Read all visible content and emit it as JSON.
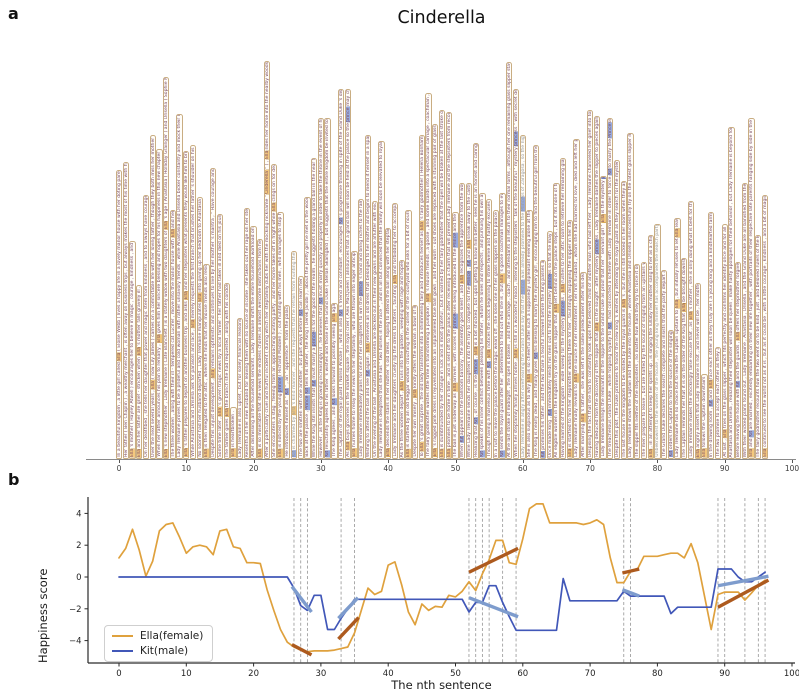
{
  "figure": {
    "panel_a_label": "a",
    "panel_b_label": "b"
  },
  "panel_a": {
    "title": "Cinderella",
    "x_ticks": [
      0,
      10,
      20,
      30,
      40,
      50,
      60,
      70,
      80,
      90,
      100
    ],
    "gray_indices": [
      26,
      60,
      80
    ],
    "highlight": {
      "ella_pattern": "Cinderella|Ella",
      "kit_pattern": "Kit|Prince|prince",
      "ella_color": "#f4c87e",
      "kit_color": "#97abdf"
    },
    "sentences": [
      "In a beautiful kingdom , a little girl called Ella ( Eloise Webb ) lives a happy life in a lovely manor house with her doting parents .",
      "Her father ( Ben Chaplin ) , a wealthy merchant , is often away on business trips , but always makes the most of his time with his family .",
      "Ella 's mother ( Hayley Atwell ) encourages her to believe in magic , courage , kindness , and hope .",
      "Ella and her father are grief - stricken when Ella 's mother falls gravely ill .",
      "On her deathbed , she tells her daughter that power and magic stem from kindness , and to always have courage and be kind .",
      "Over the next several years , Ella ( now Lily James ) carries on a comfortable life with her loving father , though they both miss her mother terribly .",
      "When her father announces his plan to remarry , Ella gives him her sincere blessing and hopes for his happiness in this new chapter of his life .",
      "Ella 's new stepmother , Lady Tremaine ( Cate Blanchett ) is a stately widow with two daughters of Ella 's age ( Anastasia ( Holliday Grainger ) and Drisella ( Sophie McShera ) ) .",
      "The three women , along with their ill - tempered cat Lucifer , move into the manor house with Ella and her father .",
      "Lady Tremaine proves to be a prideful and cold woman with rather unsavory friends , while Anastasia and Drisella bicker constantly and mock their new stepsister .",
      "Ella 's father prepares to depart on another business trip , and asks Ella and her stepsisters what presents they would like him to bring them .",
      "While Anastasia and Drisella ask for parasols and lace , Ella merely requests the first branch that brushes her father 's shoulder on his journey .",
      "No sooner had her husband departed , Lady Tremaine manipulates Ella into giving up her bedroom to Anastasia and Drisella .",
      "Ella is then relegated to the attic , where she finds that her mouse friends also reside .",
      "Despite this unjust development , Ella remains optimistic and continues to live by her mother 's mantra , \" Have courage and be kind . \"",
      "Some time later , Ella 's given tragic news by a local farmer : her father had taken ill and died on his journey .",
      "The farmer gives Ella the branch she had requested , along with his condolences .",
      "Ella is heartbroken .",
      "Lady Tremaine is also upset , but for solely financial reasons .",
      "Resentful of her new husband for leaving them with no source of income , she takes out her rage on her stepdaughter .",
      "After dismissing all the household servants , Lady Tremaine shifts the entire household workload onto Ella .",
      "Ella is so miserable that she views the endless chores as almost welcome distractions from her grief .",
      "After a particularly cruel and hurtful incident ( during which her stepfamily dubs her with the mocking nickname \" Cinderella \" ) , Ella rides her horse into the nearby woods to calm herself .",
      "She encounters a stag , fleeing from an approaching hunting party , and her horse takes off in fright while Ella clings on for dear life .",
      "Ella is noticed by the young prince ( Richard Madden ) , out hunting with his men , who manages to stop her horse .",
      "He introduces himself as \" Kit \" , an \" apprentice \" from the palace .",
      "Kit is charmed by Ella 's kind manner , and she requests that he refrain from hunting the stag .",
      "The two are smitten with one another , but part ways before Kit can learn her name .",
      "Back at the palace , Prince Kit tells his father , the King ( Derek Jacobi ) , about the pretty girl he met in the woods .",
      "While the King still insists that Kit must marry a princess for the good of the realm , he suggests holding a grand ball in the near future .",
      "However , as the King is growing increasingly ill , he believes that Kit must marry quickly and properly in order to take the throne in the event of his death .",
      "Kit reluctantly agrees to his father 's wishes and those of the Grand Duke ( Stellan Skarsgård ) , but suggests that the entire kingdom be invited to the ball .",
      "The King agrees , and Kit looks forward to possibly seeing Ella again .",
      "The Captain of the royal guard ( Nonso Anozie ) , who is also Kit 's friend and confidant , encourages Kit 's progressive thinking in spite of the Grand Duke 's disapproval .",
      "As Ella buys groceries in the market square , the royal crier ( Alex MacQueen ) announces that a grand ball will soon be held at the palace so the prince may choose a bride .",
      "Ella hurries home to relay the news to her stepfamily , who are thrown into eager anticipation .",
      "Lady Tremaine immediately plans for one of her daughters to win the prince 's hand and bring riches to the family again .",
      "Wishing to attend the ball and see Kit again , Ella retrieves an old dress that belonged to her mother and begins to mend it herself in a spare moment .",
      "On the evening of the ball , Anastasia and Drisella are decked out in their new gowns and are aflutter with excitement .",
      "Lady Tremaine is delighted that she has \" two horses in the race \" , and is all but convinced that the family will soon be elevated to royal status .",
      "Ella descends the stairs in her mother 's old dress , hoping to attend the ball along with her stepfamily .",
      "Lady Tremaine and her daughters cruelly rip the dress to tatters , taunting Ella and forbidding her to accompany them .",
      "As the three women depart , Ella runs into the garden , weeping with rage and hopelessness .",
      "Ella is startled by an old beggar woman crouching in the corner of the courtyard who asks for a bit of nourishment .",
      "Despite her own misery , Ella kindly offers the woman a bowl of milk .",
      "To Ella 's great surprise , the old lady transforms into a shimmering fairy and introduces herself as Ella 's fairy godmother ( Helena Bonham Carter ) .",
      "The fairy godmother wastes little time in transforming a pumpkin , Ella 's mouse friends , a goose , and some lizards into a spectacular carriage , coachman , and footmen .",
      "Ella 's ragged pink dress is rejuvenated into an unparalleled blue ball gown , and her worn - out shoes are replaced with a stunning pair of glass slippers .",
      "Ella is dumbfounded by her change in luck and is most grateful , but is warned by her fairy godmother that the spell will be broken at the last stroke of midnight .",
      "Ella promises to be home in time , and is sent off to the palace after receiving a charm that will prevent Lady Tremaine and the stepsisters from recognizing her .",
      "The ball is just underway as Ella arrives , with scores of princesses being introduced to the Prince and the King .",
      "When Kit appears on the ballroom balcony , the assembly goes silent , and Ella recognizes the apprentice from the woods at once .",
      "While Lady Tremaine sends her daughters into the fray to compete for the Prince , Kit and Ella sneak away to the castle grounds .",
      "Realizing that Kit , of course , is the Prince , Ella is a bit shocked , but upon getting to know him better , sees he is an honest and caring man .",
      "Kit speaks of his inner conflict between pleasing his father , whom he loves and respects , and pursuing his own ambitions .",
      "Though having a marvelous time with Kit , Ella notices the clock beginning to strike twelve and hastily excuses herself .",
      "In a rush to leave the palace before the magic wears off , she loses one of her glass slippers on the palace steps .",
      "Kit sends the royal guard after her , determined to find out who she is , but Ella 's goose coachman manages to evade them .",
      "At the last stroke of midnight , the spell is broken , and the carriage , coach , and attendants all return to their normal forms , although her one remaining glass slipper stays intact .",
      "When her stepfamily finally arrives home , Ella is still in a wonderful mood , listening to the stepsisters ' talk of the beautiful \" mystery princess \" with secret delight .",
      "Lady Tremaine is angry after overhearing the Grand Duke say that the Prince was already promised to the Princess of Zaragosa , so the night was wasted .",
      "She is also suspicious as to why Ella is so cheerful after such a supposedly unpleasant evening alone at the house .",
      "The King is nearly dead , and finally gives Kit his blessing to marry the mystery girl , encouraging him to find the beautiful girl from the ball .",
      "Kit promises his father , and the two share a tearful farewell before the King passes away .",
      "Once made king , Kit immediately sends his men out to find the mystery princess so that he may marry her .",
      "All eligible women in the kingdom try on the glass slipper that Ella left behind on the palace steps , but it fits none of them .",
      "Having learned of the kingdom - wide sweep for the mystery princess , Ella rushes to her attic room to retrieve her remaining glass slipper .",
      "Ella is startled to find her stepmother waiting there for her , tauntingly displaying the slipper in her hand .",
      "Lady Tremaine finally reveals to Ella the source of her resentment : her first husband , whom she had married for love , died and left her penniless .",
      "After marrying Ella 's father , she was left in the same predicament after his death .",
      "Despising the fact that she had to constantly look upon the beloved child of another man who had left her , Lady Tremaine channeled her grief into tormenting Ella .",
      "Having deduced from the discovery of the slipper that Ella is the sought - after mystery princess , Lady Tremaine dashes the slipper to pieces against the wall .",
      "Lady Tremaine brings the remnants of the slipper to the Grand Duke as proof that her \" servant girl \" Ella is the mystery princess .",
      "The treacherous Grand Duke , while forgoing loyalty to Kit , had concocted a scheme with Lady Tremaine in order to force Kit to marry the Princess of Zaragosa .",
      "Despite this plot , the Duke promises to honor the new king 's wishes by attending the royal guard as they search for the mystery princess .",
      "The last house in the kingdom to be visited by the royal guard is Ella 's , but she is still locked in her room when they arrive .",
      "Lady Tremaine shows the Captain and the Duke into the house , where Anastasia and Drisella unsuccessfully try on the latest glass slipper made for them .",
      "The slipper fits neither of the stepsisters , no matter how hard they try to force it on .",
      "The men prepare to leave , but are halted by the sound of singing from an upstairs window .",
      "Ella , in an attempt to keep her spirits up , is singing the lullaby her mother sang to her as a child .",
      "Unbeknownst to the women of the house , the young king himself has accompanied the search party in disguise .",
      "The Grand Duke declares the search complete and insists that the party depart at once .",
      "Kit orders the Captain to find the source of the singing .",
      "Lady Tremaine has no choice but to lead the Captain upstairs to Ella , but initially refuses to let Ella leave .",
      "The Captain reminds her that it is on the order of the King that Ella be brought downstairs .",
      "Lady Tremaine makes the shockingly false excuse that , as Ella 's mother , she is only doing what is best for the girl .",
      "Ella angrily asserts that Lady Tremaine is not , and never will be , her mother .",
      "Ella follows the Captain downstairs .",
      "In the drawing room , Kit and Ella face each other as they truly are ( a young king and a kindhearted farm girl ) .",
      "The two promise to accept each other as they are .",
      "At last , Ella tries on the glass slipper , which fits perfectly and confirms her identity once and for all .",
      "Anastasia and Drisella , realizing their stepsister will soon be queen , make hasty apologies for their behavior , but Lady Tremaine is beyond forgiveness .",
      "Before leaving the house with Kit and the guards , Ella offers her stepmother forgiveness .",
      "With their wicked plans found out , Lady Tremaine , Anastasia , Drisella , and the Grand Duke are all banished from the kingdom .",
      "Ella and Kit are married , excitedly embarking on their new life together , with portraits of their respective late parents hanging side by side in the palace .",
      "The fairy godmother recounts how the two went on to be kind , just , and beloved rulers of the kingdom .",
      "Ella continued to see the world not as it is , but as it could be , with a little courage , kindness , and a bit of magic ."
    ]
  },
  "chart_data": {
    "type": "line",
    "title": "",
    "xlabel": "The nth sentence",
    "ylabel": "Happiness score",
    "x_ticks": [
      0,
      10,
      20,
      30,
      40,
      50,
      60,
      70,
      80,
      90,
      100
    ],
    "y_ticks": [
      -4,
      -2,
      0,
      2,
      4
    ],
    "y_tick_labels": [
      "−4",
      "−2",
      "0",
      "2",
      "4"
    ],
    "xlim": [
      -4.5,
      100.5
    ],
    "ylim": [
      -5.4,
      5.0
    ],
    "grid": false,
    "legend_position": "lower left",
    "series": [
      {
        "name": "Ella(female)",
        "color": "#dfa13d",
        "values": [
          1.2,
          1.8,
          3.0,
          1.7,
          0.05,
          1.0,
          2.9,
          3.3,
          3.4,
          2.5,
          1.5,
          1.9,
          2.0,
          1.9,
          1.4,
          2.9,
          3.0,
          1.9,
          1.8,
          0.9,
          0.9,
          0.85,
          -0.8,
          -2.1,
          -3.3,
          -4.1,
          -4.4,
          -4.6,
          -4.7,
          -4.65,
          -4.65,
          -4.65,
          -4.6,
          -4.5,
          -4.4,
          -3.5,
          -2.1,
          -0.7,
          -1.1,
          -0.9,
          0.75,
          0.95,
          -0.5,
          -2.2,
          -3.0,
          -1.7,
          -2.1,
          -1.85,
          -1.9,
          -1.15,
          -1.25,
          -0.9,
          -0.3,
          -0.85,
          0.2,
          1.1,
          2.3,
          2.3,
          0.9,
          0.8,
          2.4,
          4.3,
          4.6,
          4.6,
          3.4,
          3.4,
          3.4,
          3.4,
          3.4,
          3.3,
          3.4,
          3.6,
          3.3,
          1.2,
          -0.35,
          -0.35,
          0.35,
          0.45,
          1.3,
          1.3,
          1.3,
          1.4,
          1.5,
          1.5,
          1.2,
          2.1,
          0.9,
          -1.2,
          -3.3,
          -1.1,
          -0.95,
          -0.95,
          -0.95,
          -1.45,
          -1.0,
          -0.5,
          -0.2
        ]
      },
      {
        "name": "Kit(male)",
        "color": "#4157b8",
        "values": [
          0,
          0,
          0,
          0,
          0,
          0,
          0,
          0,
          0,
          0,
          0,
          0,
          0,
          0,
          0,
          0,
          0,
          0,
          0,
          0,
          0,
          0,
          0,
          0,
          0,
          0,
          -0.7,
          -1.8,
          -2.1,
          -1.15,
          -1.15,
          -3.3,
          -3.3,
          -2.6,
          -2.0,
          -1.4,
          -1.4,
          -1.4,
          -1.4,
          -1.4,
          -1.4,
          -1.4,
          -1.4,
          -1.4,
          -1.4,
          -1.4,
          -1.4,
          -1.4,
          -1.4,
          -1.4,
          -1.4,
          -1.4,
          -2.2,
          -1.6,
          -1.6,
          -0.55,
          -0.55,
          -1.6,
          -2.5,
          -3.35,
          -3.35,
          -3.35,
          -3.35,
          -3.35,
          -3.35,
          -3.35,
          -0.1,
          -1.5,
          -1.5,
          -1.5,
          -1.5,
          -1.5,
          -1.5,
          -1.5,
          -1.5,
          -0.9,
          -1.2,
          -1.2,
          -1.2,
          -1.2,
          -1.2,
          -1.2,
          -2.3,
          -1.9,
          -1.9,
          -1.9,
          -1.9,
          -1.9,
          -1.9,
          0.5,
          0.5,
          0.5,
          0.0,
          -0.3,
          -0.3,
          0.0,
          0.3
        ]
      }
    ],
    "trend_segments": [
      {
        "series": "Ella(female)",
        "color": "#ad5a1e",
        "x1": 25.7,
        "y1": -4.25,
        "x2": 28.6,
        "y2": -4.9
      },
      {
        "series": "Ella(female)",
        "color": "#ad5a1e",
        "x1": 32.6,
        "y1": -3.9,
        "x2": 35.6,
        "y2": -2.55
      },
      {
        "series": "Ella(female)",
        "color": "#ad5a1e",
        "x1": 52.0,
        "y1": 0.3,
        "x2": 59.3,
        "y2": 1.8
      },
      {
        "series": "Ella(female)",
        "color": "#ad5a1e",
        "x1": 74.8,
        "y1": 0.25,
        "x2": 77.3,
        "y2": 0.5
      },
      {
        "series": "Ella(female)",
        "color": "#ad5a1e",
        "x1": 89.0,
        "y1": -1.9,
        "x2": 96.5,
        "y2": -0.2
      },
      {
        "series": "Kit(male)",
        "color": "#7e9ccd",
        "x1": 25.7,
        "y1": -0.6,
        "x2": 28.6,
        "y2": -2.2
      },
      {
        "series": "Kit(male)",
        "color": "#7e9ccd",
        "x1": 32.6,
        "y1": -2.6,
        "x2": 35.5,
        "y2": -1.3
      },
      {
        "series": "Kit(male)",
        "color": "#7e9ccd",
        "x1": 52.0,
        "y1": -1.3,
        "x2": 59.3,
        "y2": -2.5
      },
      {
        "series": "Kit(male)",
        "color": "#7e9ccd",
        "x1": 74.8,
        "y1": -0.8,
        "x2": 77.3,
        "y2": -1.2
      },
      {
        "series": "Kit(male)",
        "color": "#7e9ccd",
        "x1": 89.0,
        "y1": -0.55,
        "x2": 96.5,
        "y2": 0.05
      }
    ],
    "dashed_lines_x": [
      26,
      27,
      28,
      33,
      35,
      52,
      53,
      54,
      55,
      57,
      59,
      75,
      76,
      89,
      90,
      93,
      95,
      96
    ],
    "dashed_line_color": "#a0a0a0",
    "axis_color": "#2a2a2a"
  }
}
